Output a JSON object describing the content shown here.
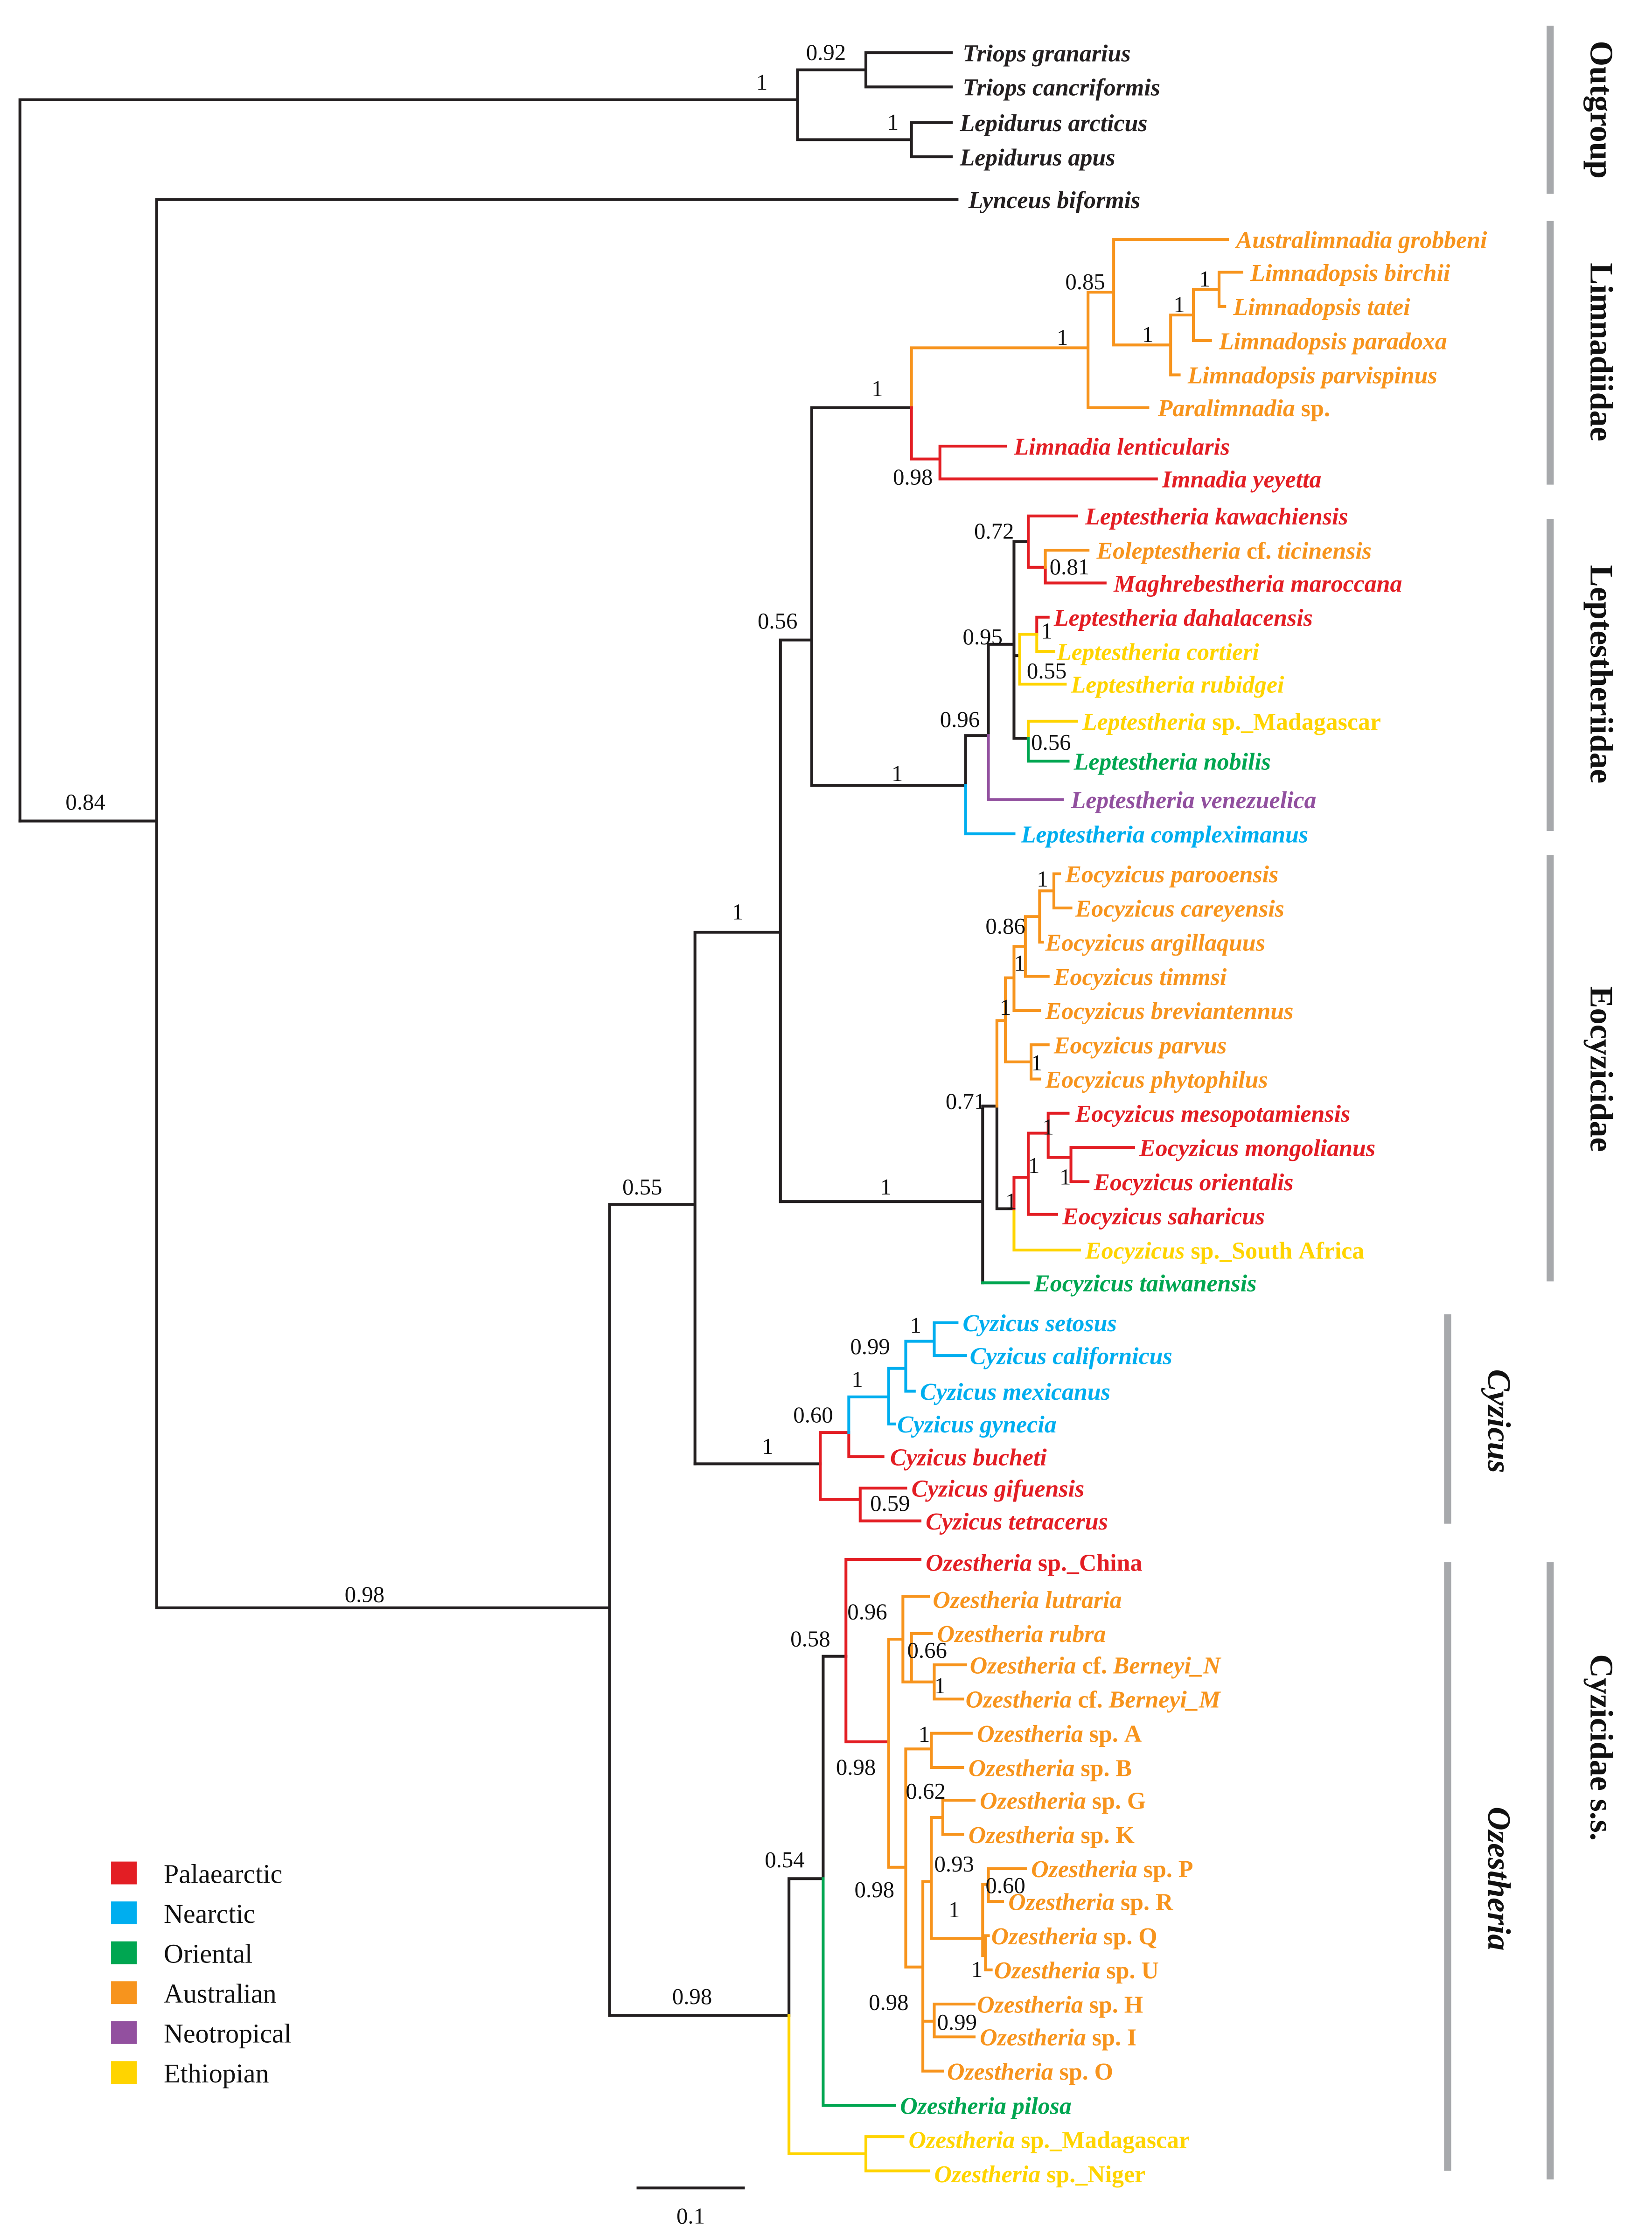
{
  "colors": {
    "K": "#231f20",
    "R": "#e31e24",
    "O": "#f7941d",
    "Y": "#ffd400",
    "G": "#00a651",
    "B": "#00aeef",
    "P": "#92509f"
  },
  "legend": [
    {
      "label": "Palaearctic",
      "color": "#e31e24"
    },
    {
      "label": "Nearctic",
      "color": "#00aeef"
    },
    {
      "label": "Oriental",
      "color": "#00a651"
    },
    {
      "label": "Australian",
      "color": "#f7941d"
    },
    {
      "label": "Neotropical",
      "color": "#92509f"
    },
    {
      "label": "Ethiopian",
      "color": "#ffd400"
    }
  ],
  "clades": [
    {
      "label": "Outgroup"
    },
    {
      "label": "Limnadiidae"
    },
    {
      "label": "Leptestheriidae"
    },
    {
      "label": "Eocyzicidae"
    },
    {
      "label": "Cyzicus"
    },
    {
      "label": "Ozestheria"
    },
    {
      "label": "Cyzicidae s.s."
    }
  ],
  "scale_bar": {
    "label": "0.1"
  },
  "taxa": [
    {
      "i1": "Triops granarius",
      "r": "",
      "i2": "",
      "c": "K"
    },
    {
      "i1": "Triops cancriformis",
      "r": "",
      "i2": "",
      "c": "K"
    },
    {
      "i1": "Lepidurus arcticus",
      "r": "",
      "i2": "",
      "c": "K"
    },
    {
      "i1": "Lepidurus apus",
      "r": "",
      "i2": "",
      "c": "K"
    },
    {
      "i1": "Lynceus biformis",
      "r": "",
      "i2": "",
      "c": "K"
    },
    {
      "i1": "Australimnadia grobbeni",
      "r": "",
      "i2": "",
      "c": "O"
    },
    {
      "i1": "Limnadopsis birchii",
      "r": "",
      "i2": "",
      "c": "O"
    },
    {
      "i1": "Limnadopsis tatei",
      "r": "",
      "i2": "",
      "c": "O"
    },
    {
      "i1": "Limnadopsis paradoxa",
      "r": "",
      "i2": "",
      "c": "O"
    },
    {
      "i1": "Limnadopsis parvispinus",
      "r": "",
      "i2": "",
      "c": "O"
    },
    {
      "i1": "Paralimnadia",
      "r": " sp.",
      "i2": "",
      "c": "O"
    },
    {
      "i1": "Limnadia lenticularis",
      "r": "",
      "i2": "",
      "c": "R"
    },
    {
      "i1": "Imnadia yeyetta",
      "r": "",
      "i2": "",
      "c": "R"
    },
    {
      "i1": "Leptestheria kawachiensis",
      "r": "",
      "i2": "",
      "c": "R"
    },
    {
      "i1": "Eoleptestheria",
      "r": " cf. ",
      "i2": "ticinensis",
      "c": "O"
    },
    {
      "i1": "Maghrebestheria maroccana",
      "r": "",
      "i2": "",
      "c": "R"
    },
    {
      "i1": "Leptestheria dahalacensis",
      "r": "",
      "i2": "",
      "c": "R"
    },
    {
      "i1": "Leptestheria cortieri",
      "r": "",
      "i2": "",
      "c": "Y"
    },
    {
      "i1": "Leptestheria rubidgei",
      "r": "",
      "i2": "",
      "c": "Y"
    },
    {
      "i1": "Leptestheria",
      "r": " sp._Madagascar",
      "i2": "",
      "c": "Y"
    },
    {
      "i1": "Leptestheria nobilis",
      "r": "",
      "i2": "",
      "c": "G"
    },
    {
      "i1": "Leptestheria venezuelica",
      "r": "",
      "i2": "",
      "c": "P"
    },
    {
      "i1": "Leptestheria compleximanus",
      "r": "",
      "i2": "",
      "c": "B"
    },
    {
      "i1": "Eocyzicus parooensis",
      "r": "",
      "i2": "",
      "c": "O"
    },
    {
      "i1": "Eocyzicus careyensis",
      "r": "",
      "i2": "",
      "c": "O"
    },
    {
      "i1": "Eocyzicus argillaquus",
      "r": "",
      "i2": "",
      "c": "O"
    },
    {
      "i1": "Eocyzicus timmsi",
      "r": "",
      "i2": "",
      "c": "O"
    },
    {
      "i1": "Eocyzicus breviantennus",
      "r": "",
      "i2": "",
      "c": "O"
    },
    {
      "i1": "Eocyzicus parvus",
      "r": "",
      "i2": "",
      "c": "O"
    },
    {
      "i1": "Eocyzicus phytophilus",
      "r": "",
      "i2": "",
      "c": "O"
    },
    {
      "i1": "Eocyzicus mesopotamiensis",
      "r": "",
      "i2": "",
      "c": "R"
    },
    {
      "i1": "Eocyzicus mongolianus",
      "r": "",
      "i2": "",
      "c": "R"
    },
    {
      "i1": "Eocyzicus orientalis",
      "r": "",
      "i2": "",
      "c": "R"
    },
    {
      "i1": "Eocyzicus saharicus",
      "r": "",
      "i2": "",
      "c": "R"
    },
    {
      "i1": "Eocyzicus",
      "r": " sp._South Africa",
      "i2": "",
      "c": "Y"
    },
    {
      "i1": "Eocyzicus taiwanensis",
      "r": "",
      "i2": "",
      "c": "G"
    },
    {
      "i1": "Cyzicus setosus",
      "r": "",
      "i2": "",
      "c": "B"
    },
    {
      "i1": "Cyzicus californicus",
      "r": "",
      "i2": "",
      "c": "B"
    },
    {
      "i1": "Cyzicus mexicanus",
      "r": "",
      "i2": "",
      "c": "B"
    },
    {
      "i1": "Cyzicus gynecia",
      "r": "",
      "i2": "",
      "c": "B"
    },
    {
      "i1": "Cyzicus bucheti",
      "r": "",
      "i2": "",
      "c": "R"
    },
    {
      "i1": "Cyzicus gifuensis",
      "r": "",
      "i2": "",
      "c": "R"
    },
    {
      "i1": "Cyzicus tetracerus",
      "r": "",
      "i2": "",
      "c": "R"
    },
    {
      "i1": "Ozestheria",
      "r": " sp._China",
      "i2": "",
      "c": "R"
    },
    {
      "i1": "Ozestheria lutraria",
      "r": "",
      "i2": "",
      "c": "O"
    },
    {
      "i1": "Ozestheria rubra",
      "r": "",
      "i2": "",
      "c": "O"
    },
    {
      "i1": "Ozestheria",
      "r": " cf. ",
      "i2": "Berneyi_N",
      "c": "O"
    },
    {
      "i1": "Ozestheria",
      "r": " cf. ",
      "i2": "Berneyi_M",
      "c": "O"
    },
    {
      "i1": "Ozestheria",
      "r": " sp. A",
      "i2": "",
      "c": "O"
    },
    {
      "i1": "Ozestheria",
      "r": " sp. B",
      "i2": "",
      "c": "O"
    },
    {
      "i1": "Ozestheria",
      "r": " sp. G",
      "i2": "",
      "c": "O"
    },
    {
      "i1": "Ozestheria",
      "r": " sp. K",
      "i2": "",
      "c": "O"
    },
    {
      "i1": "Ozestheria",
      "r": " sp. P",
      "i2": "",
      "c": "O"
    },
    {
      "i1": "Ozestheria",
      "r": " sp. R",
      "i2": "",
      "c": "O"
    },
    {
      "i1": "Ozestheria",
      "r": " sp. Q",
      "i2": "",
      "c": "O"
    },
    {
      "i1": "Ozestheria",
      "r": " sp. U",
      "i2": "",
      "c": "O"
    },
    {
      "i1": "Ozestheria",
      "r": " sp. H",
      "i2": "",
      "c": "O"
    },
    {
      "i1": "Ozestheria",
      "r": " sp. I",
      "i2": "",
      "c": "O"
    },
    {
      "i1": "Ozestheria",
      "r": " sp. O",
      "i2": "",
      "c": "O"
    },
    {
      "i1": "Ozestheria pilosa",
      "r": "",
      "i2": "",
      "c": "G"
    },
    {
      "i1": "Ozestheria",
      "r": " sp._Madagascar",
      "i2": "",
      "c": "Y"
    },
    {
      "i1": "Ozestheria",
      "r": " sp._Niger",
      "i2": "",
      "c": "Y"
    }
  ],
  "supports": [
    "0.92",
    "1",
    "1",
    "0.84",
    "1",
    "1",
    "0.85",
    "1",
    "1",
    "1",
    "0.98",
    "0.56",
    "1",
    "0.96",
    "0.95",
    "0.72",
    "0.81",
    "1",
    "0.55",
    "0.56",
    "1",
    "1",
    "0.71",
    "1",
    "0.86",
    "1",
    "1",
    "1",
    "1",
    "1",
    "1",
    "1",
    "0.55",
    "1",
    "0.60",
    "1",
    "0.99",
    "1",
    "0.59",
    "0.98",
    "0.98",
    "0.54",
    "0.58",
    "0.98",
    "0.96",
    "0.66",
    "1",
    "1",
    "0.62",
    "0.98",
    "0.93",
    "0.60",
    "1",
    "1",
    "0.98",
    "0.99"
  ]
}
